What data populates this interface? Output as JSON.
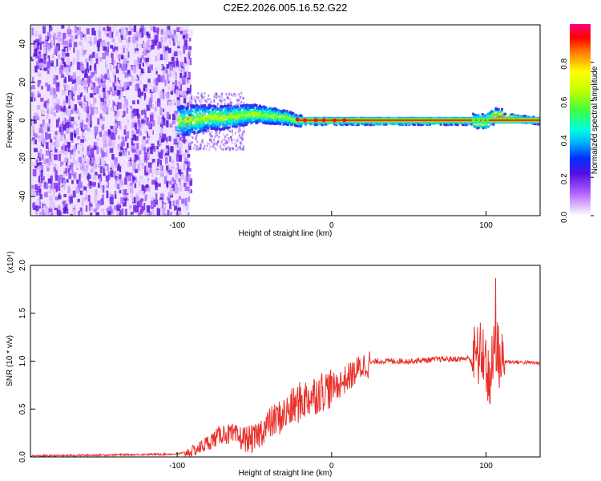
{
  "title": "C2E2.2026.005.16.52.G22",
  "colors": {
    "axis": "#000000",
    "snr_line": "#e8302a",
    "background": "#ffffff"
  },
  "chart_data": [
    {
      "type": "heatmap",
      "name": "spectrogram",
      "xlabel": "Height of straight line (km)",
      "ylabel": "Frequency (Hz)",
      "xlim": [
        -195,
        135
      ],
      "ylim": [
        -50,
        50
      ],
      "xticks": [
        -100,
        0,
        100
      ],
      "yticks": [
        -40,
        -20,
        0,
        20,
        40
      ],
      "noise_region_x": [
        -195,
        -92
      ],
      "signal_track": {
        "x": [
          -100,
          -90,
          -80,
          -70,
          -60,
          -50,
          -40,
          -30,
          -20,
          -10,
          0,
          100,
          105,
          135
        ],
        "freq": [
          0,
          1,
          2,
          2,
          3,
          4,
          3,
          2,
          0,
          0,
          0,
          0,
          3,
          0
        ]
      },
      "colorbar": {
        "label": "Normalized spectral amplitude",
        "range": [
          0,
          1
        ],
        "ticks": [
          "0.0",
          "0.2",
          "0.4",
          "0.6",
          "0.8"
        ]
      }
    },
    {
      "type": "line",
      "name": "snr",
      "xlabel": "Height of straight line (km)",
      "ylabel": "SNR (10 * v/v)",
      "scale_label": "(x10⁴)",
      "xlim": [
        -195,
        135
      ],
      "ylim": [
        0,
        2.0
      ],
      "xticks": [
        -100,
        0,
        100
      ],
      "yticks": [
        "0.0",
        "0.5",
        "1.0",
        "1.5",
        "2.0"
      ],
      "series": [
        {
          "name": "SNR",
          "x": [
            -195,
            -150,
            -100,
            -90,
            -85,
            -80,
            -70,
            -60,
            -50,
            -45,
            -40,
            -35,
            -30,
            -25,
            -20,
            -15,
            -10,
            -5,
            0,
            5,
            10,
            15,
            20,
            25,
            30,
            40,
            50,
            60,
            70,
            80,
            90,
            95,
            98,
            100,
            102,
            104,
            106,
            108,
            110,
            120,
            135
          ],
          "y": [
            0.01,
            0.02,
            0.03,
            0.06,
            0.1,
            0.15,
            0.25,
            0.2,
            0.18,
            0.28,
            0.35,
            0.4,
            0.45,
            0.52,
            0.58,
            0.62,
            0.66,
            0.7,
            0.72,
            0.76,
            0.82,
            0.88,
            0.95,
            0.98,
            1.0,
            1.0,
            1.0,
            1.01,
            1.02,
            1.02,
            1.03,
            1.05,
            1.1,
            1.0,
            0.75,
            0.95,
            1.2,
            1.05,
            1.0,
            0.99,
            0.98
          ]
        }
      ]
    }
  ]
}
